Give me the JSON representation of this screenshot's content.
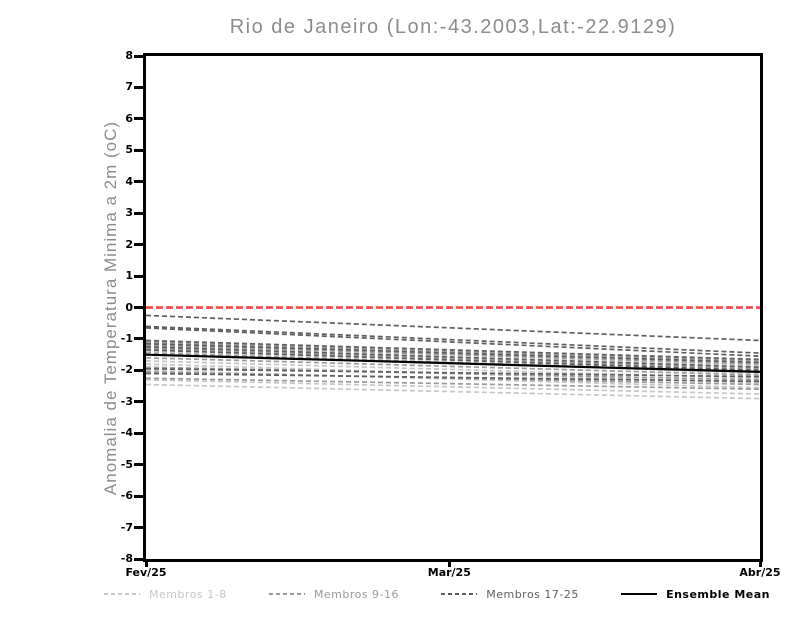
{
  "figure": {
    "title": "Rio de Janeiro (Lon:-43.2003,Lat:-22.9129)",
    "ylabel": "Anomalia de Temperatura Minima a 2m (oC)"
  },
  "colors": {
    "title_text": "#8c8c8c",
    "axis_text": "#000000",
    "frame": "#000000",
    "zero_line": "#f94b4b",
    "members_1_8": "#c6c6c6",
    "members_9_16": "#9a9a9a",
    "members_17_25": "#5e5e5e",
    "ensemble_mean": "#000000"
  },
  "chart_data": {
    "type": "line",
    "title": "Rio de Janeiro (Lon:-43.2003,Lat:-22.9129)",
    "xlabel": "",
    "ylabel": "Anomalia de Temperatura Minima a 2m (oC)",
    "ylim": [
      -8,
      8
    ],
    "ytick_step": 1,
    "ytick_labels": [
      "8",
      "7",
      "6",
      "5",
      "4",
      "3",
      "2",
      "1",
      "0",
      "-1",
      "-2",
      "-3",
      "-4",
      "-5",
      "-6",
      "-7",
      "-8"
    ],
    "x_tick_labels": [
      "Fev/25",
      "Mar/25",
      "Abr/25"
    ],
    "x_tick_positions": [
      0,
      0.494,
      1
    ],
    "grid": false,
    "legend_position": "bottom",
    "zero_line": {
      "value": 0,
      "color": "#f94b4b",
      "style": "dashed"
    },
    "legend": [
      {
        "label": "Membros 1-8",
        "color": "#c6c6c6",
        "style": "dashed"
      },
      {
        "label": "Membros 9-16",
        "color": "#9a9a9a",
        "style": "dashed"
      },
      {
        "label": "Membros 17-25",
        "color": "#5e5e5e",
        "style": "dashed"
      },
      {
        "label": "Ensemble Mean",
        "color": "#000000",
        "style": "solid"
      }
    ],
    "x": [
      0,
      1
    ],
    "series": [
      {
        "name": "Membro 1",
        "group": "Membros 1-8",
        "style": "dashed",
        "color": "#c6c6c6",
        "values": [
          -1.15,
          -1.85
        ]
      },
      {
        "name": "Membro 2",
        "group": "Membros 1-8",
        "style": "dashed",
        "color": "#c6c6c6",
        "values": [
          -1.3,
          -2.0
        ]
      },
      {
        "name": "Membro 3",
        "group": "Membros 1-8",
        "style": "dashed",
        "color": "#c6c6c6",
        "values": [
          -1.4,
          -2.1
        ]
      },
      {
        "name": "Membro 4",
        "group": "Membros 1-8",
        "style": "dashed",
        "color": "#c6c6c6",
        "values": [
          -1.7,
          -2.25
        ]
      },
      {
        "name": "Membro 5",
        "group": "Membros 1-8",
        "style": "dashed",
        "color": "#c6c6c6",
        "values": [
          -1.8,
          -2.4
        ]
      },
      {
        "name": "Membro 6",
        "group": "Membros 1-8",
        "style": "dashed",
        "color": "#c6c6c6",
        "values": [
          -2.0,
          -2.55
        ]
      },
      {
        "name": "Membro 7",
        "group": "Membros 1-8",
        "style": "dashed",
        "color": "#c6c6c6",
        "values": [
          -2.3,
          -2.75
        ]
      },
      {
        "name": "Membro 8",
        "group": "Membros 1-8",
        "style": "dashed",
        "color": "#c6c6c6",
        "values": [
          -2.45,
          -2.9
        ]
      },
      {
        "name": "Membro 9",
        "group": "Membros 9-16",
        "style": "dashed",
        "color": "#9a9a9a",
        "values": [
          -1.1,
          -1.7
        ]
      },
      {
        "name": "Membro 10",
        "group": "Membros 9-16",
        "style": "dashed",
        "color": "#9a9a9a",
        "values": [
          -1.2,
          -1.8
        ]
      },
      {
        "name": "Membro 11",
        "group": "Membros 9-16",
        "style": "dashed",
        "color": "#9a9a9a",
        "values": [
          -1.3,
          -1.95
        ]
      },
      {
        "name": "Membro 12",
        "group": "Membros 9-16",
        "style": "dashed",
        "color": "#9a9a9a",
        "values": [
          -1.45,
          -2.05
        ]
      },
      {
        "name": "Membro 13",
        "group": "Membros 9-16",
        "style": "dashed",
        "color": "#9a9a9a",
        "values": [
          -1.6,
          -2.15
        ]
      },
      {
        "name": "Membro 14",
        "group": "Membros 9-16",
        "style": "dashed",
        "color": "#9a9a9a",
        "values": [
          -1.9,
          -2.3
        ]
      },
      {
        "name": "Membro 15",
        "group": "Membros 9-16",
        "style": "dashed",
        "color": "#9a9a9a",
        "values": [
          -2.05,
          -2.45
        ]
      },
      {
        "name": "Membro 16",
        "group": "Membros 9-16",
        "style": "dashed",
        "color": "#9a9a9a",
        "values": [
          -2.25,
          -2.6
        ]
      },
      {
        "name": "Membro 17",
        "group": "Membros 17-25",
        "style": "dashed",
        "color": "#5e5e5e",
        "values": [
          -0.25,
          -1.05
        ]
      },
      {
        "name": "Membro 18",
        "group": "Membros 17-25",
        "style": "dashed",
        "color": "#5e5e5e",
        "values": [
          -0.6,
          -1.45
        ]
      },
      {
        "name": "Membro 19",
        "group": "Membros 17-25",
        "style": "dashed",
        "color": "#5e5e5e",
        "values": [
          -0.65,
          -1.55
        ]
      },
      {
        "name": "Membro 20",
        "group": "Membros 17-25",
        "style": "dashed",
        "color": "#5e5e5e",
        "values": [
          -1.05,
          -1.65
        ]
      },
      {
        "name": "Membro 21",
        "group": "Membros 17-25",
        "style": "dashed",
        "color": "#5e5e5e",
        "values": [
          -1.15,
          -1.75
        ]
      },
      {
        "name": "Membro 22",
        "group": "Membros 17-25",
        "style": "dashed",
        "color": "#5e5e5e",
        "values": [
          -1.25,
          -1.9
        ]
      },
      {
        "name": "Membro 23",
        "group": "Membros 17-25",
        "style": "dashed",
        "color": "#5e5e5e",
        "values": [
          -1.35,
          -2.0
        ]
      },
      {
        "name": "Membro 24",
        "group": "Membros 17-25",
        "style": "dashed",
        "color": "#5e5e5e",
        "values": [
          -1.95,
          -2.2
        ]
      },
      {
        "name": "Membro 25",
        "group": "Membros 17-25",
        "style": "dashed",
        "color": "#5e5e5e",
        "values": [
          -2.1,
          -2.35
        ]
      },
      {
        "name": "Ensemble Mean",
        "group": "Ensemble Mean",
        "style": "solid",
        "color": "#000000",
        "values": [
          -1.5,
          -2.05
        ]
      }
    ]
  }
}
